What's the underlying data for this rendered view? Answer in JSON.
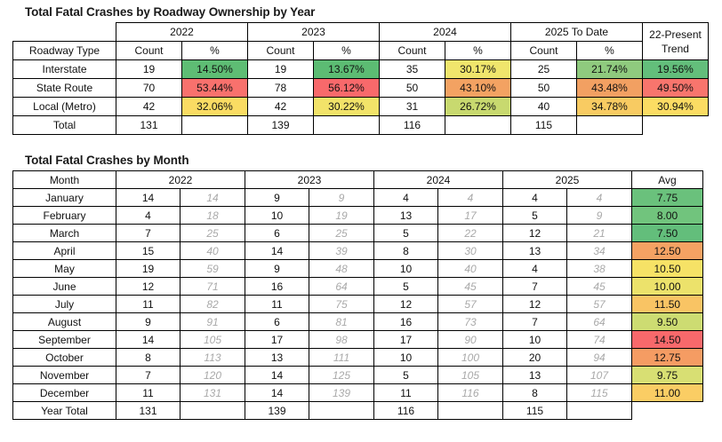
{
  "colors": {
    "grid": "#000000",
    "cumulative_text": "#A9A9A9"
  },
  "table1": {
    "title": "Total Fatal Crashes by Roadway Ownership by Year",
    "years": [
      "2022",
      "2023",
      "2024",
      "2025 To Date"
    ],
    "trend_header": [
      "22-Present",
      "Trend"
    ],
    "row_label_header": "Roadway Type",
    "count_header": "Count",
    "pct_header": "%",
    "rows": [
      {
        "label": "Interstate",
        "years": [
          {
            "count": "19",
            "pct": "14.50%",
            "pct_color": "#5EBD74"
          },
          {
            "count": "19",
            "pct": "13.67%",
            "pct_color": "#5CBC73"
          },
          {
            "count": "35",
            "pct": "30.17%",
            "pct_color": "#F0E56C"
          },
          {
            "count": "25",
            "pct": "21.74%",
            "pct_color": "#8FCA7E"
          }
        ],
        "trend": "19.56%",
        "trend_color": "#63BE7B"
      },
      {
        "label": "State Route",
        "years": [
          {
            "count": "70",
            "pct": "53.44%",
            "pct_color": "#F8716D"
          },
          {
            "count": "78",
            "pct": "56.12%",
            "pct_color": "#F8696B"
          },
          {
            "count": "50",
            "pct": "43.10%",
            "pct_color": "#F3A262"
          },
          {
            "count": "50",
            "pct": "43.48%",
            "pct_color": "#F2A062"
          }
        ],
        "trend": "49.50%",
        "trend_color": "#F8756D"
      },
      {
        "label": "Local (Metro)",
        "years": [
          {
            "count": "42",
            "pct": "32.06%",
            "pct_color": "#FADC63"
          },
          {
            "count": "42",
            "pct": "30.22%",
            "pct_color": "#F2E369"
          },
          {
            "count": "31",
            "pct": "26.72%",
            "pct_color": "#C8D96F"
          },
          {
            "count": "40",
            "pct": "34.78%",
            "pct_color": "#F8CB62"
          }
        ],
        "trend": "30.94%",
        "trend_color": "#FBDC63"
      }
    ],
    "total": {
      "label": "Total",
      "counts": [
        "131",
        "139",
        "116",
        "115"
      ]
    }
  },
  "table2": {
    "title": "Total Fatal Crashes by Month",
    "month_header": "Month",
    "years": [
      "2022",
      "2023",
      "2024",
      "2025"
    ],
    "avg_header": "Avg",
    "rows": [
      {
        "month": "January",
        "cells": [
          [
            "14",
            "14"
          ],
          [
            "9",
            "9"
          ],
          [
            "4",
            "4"
          ],
          [
            "4",
            "4"
          ]
        ],
        "avg": "7.75",
        "avg_color": "#6AC17C"
      },
      {
        "month": "February",
        "cells": [
          [
            "4",
            "18"
          ],
          [
            "10",
            "19"
          ],
          [
            "13",
            "17"
          ],
          [
            "5",
            "9"
          ]
        ],
        "avg": "8.00",
        "avg_color": "#71C47D"
      },
      {
        "month": "March",
        "cells": [
          [
            "7",
            "25"
          ],
          [
            "6",
            "25"
          ],
          [
            "5",
            "22"
          ],
          [
            "12",
            "21"
          ]
        ],
        "avg": "7.50",
        "avg_color": "#63BE7B"
      },
      {
        "month": "April",
        "cells": [
          [
            "15",
            "40"
          ],
          [
            "14",
            "39"
          ],
          [
            "8",
            "30"
          ],
          [
            "13",
            "34"
          ]
        ],
        "avg": "12.50",
        "avg_color": "#F5A263"
      },
      {
        "month": "May",
        "cells": [
          [
            "19",
            "59"
          ],
          [
            "9",
            "48"
          ],
          [
            "10",
            "40"
          ],
          [
            "4",
            "38"
          ]
        ],
        "avg": "10.50",
        "avg_color": "#F6E266"
      },
      {
        "month": "June",
        "cells": [
          [
            "12",
            "71"
          ],
          [
            "16",
            "64"
          ],
          [
            "5",
            "45"
          ],
          [
            "7",
            "45"
          ]
        ],
        "avg": "10.00",
        "avg_color": "#ECE26B"
      },
      {
        "month": "July",
        "cells": [
          [
            "11",
            "82"
          ],
          [
            "11",
            "75"
          ],
          [
            "12",
            "57"
          ],
          [
            "12",
            "57"
          ]
        ],
        "avg": "11.50",
        "avg_color": "#F9C464"
      },
      {
        "month": "August",
        "cells": [
          [
            "9",
            "91"
          ],
          [
            "6",
            "81"
          ],
          [
            "16",
            "73"
          ],
          [
            "7",
            "64"
          ]
        ],
        "avg": "9.50",
        "avg_color": "#CDDC72"
      },
      {
        "month": "September",
        "cells": [
          [
            "14",
            "105"
          ],
          [
            "17",
            "98"
          ],
          [
            "17",
            "90"
          ],
          [
            "10",
            "74"
          ]
        ],
        "avg": "14.50",
        "avg_color": "#F8696B"
      },
      {
        "month": "October",
        "cells": [
          [
            "8",
            "113"
          ],
          [
            "13",
            "111"
          ],
          [
            "10",
            "100"
          ],
          [
            "20",
            "94"
          ]
        ],
        "avg": "12.75",
        "avg_color": "#F59C63"
      },
      {
        "month": "November",
        "cells": [
          [
            "7",
            "120"
          ],
          [
            "14",
            "125"
          ],
          [
            "5",
            "105"
          ],
          [
            "13",
            "107"
          ]
        ],
        "avg": "9.75",
        "avg_color": "#D8DF73"
      },
      {
        "month": "December",
        "cells": [
          [
            "11",
            "131"
          ],
          [
            "14",
            "139"
          ],
          [
            "11",
            "116"
          ],
          [
            "8",
            "115"
          ]
        ],
        "avg": "11.00",
        "avg_color": "#FACD64"
      }
    ],
    "total": {
      "label": "Year Total",
      "counts": [
        "131",
        "139",
        "116",
        "115"
      ]
    }
  }
}
